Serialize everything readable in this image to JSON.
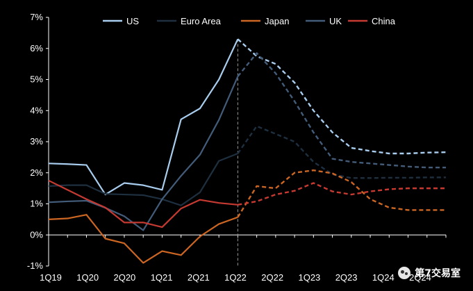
{
  "chart_data": {
    "type": "line",
    "title": "",
    "xlabel": "",
    "ylabel": "",
    "ylim": [
      -1,
      7
    ],
    "y_ticks": [
      "-1%",
      "0%",
      "1%",
      "2%",
      "3%",
      "4%",
      "5%",
      "6%",
      "7%"
    ],
    "x_ticks": [
      "1Q19",
      "1Q20",
      "2Q20",
      "1Q21",
      "2Q21",
      "1Q22",
      "2Q22",
      "1Q23",
      "2Q23",
      "1Q24",
      "2Q24"
    ],
    "forecast_start": 12,
    "legend_position": "top",
    "grid": false,
    "series": [
      {
        "name": "US",
        "color": "#a9cdee",
        "values": [
          2.3,
          2.28,
          2.25,
          1.3,
          1.67,
          1.6,
          1.45,
          3.72,
          4.07,
          5.0,
          6.3,
          5.75,
          5.5,
          4.9,
          4.0,
          3.3,
          2.8,
          2.7,
          2.62,
          2.62,
          2.65,
          2.66
        ]
      },
      {
        "name": "Euro Area",
        "color": "#1e3040",
        "values": [
          1.57,
          1.6,
          1.6,
          1.32,
          1.3,
          1.28,
          1.15,
          0.95,
          1.37,
          2.38,
          2.62,
          3.5,
          3.25,
          3.0,
          2.35,
          1.95,
          1.83,
          1.83,
          1.84,
          1.84,
          1.85,
          1.85
        ]
      },
      {
        "name": "Japan",
        "color": "#cc6622",
        "values": [
          0.5,
          0.53,
          0.65,
          -0.12,
          -0.27,
          -0.9,
          -0.52,
          -0.65,
          -0.05,
          0.35,
          0.57,
          1.57,
          1.5,
          2.0,
          2.08,
          1.98,
          1.7,
          1.15,
          0.88,
          0.8,
          0.8,
          0.8
        ]
      },
      {
        "name": "UK",
        "color": "#435c7a",
        "values": [
          1.05,
          1.08,
          1.1,
          0.87,
          0.6,
          0.15,
          1.15,
          1.9,
          2.58,
          3.7,
          5.1,
          5.85,
          5.2,
          4.3,
          3.3,
          2.45,
          2.35,
          2.3,
          2.25,
          2.2,
          2.17,
          2.17
        ]
      },
      {
        "name": "China",
        "color": "#c63a32",
        "values": [
          1.75,
          1.45,
          1.15,
          0.88,
          0.4,
          0.4,
          0.25,
          0.85,
          1.13,
          1.03,
          0.97,
          1.08,
          1.3,
          1.42,
          1.67,
          1.4,
          1.3,
          1.4,
          1.47,
          1.5,
          1.5,
          1.5
        ]
      }
    ]
  },
  "watermark": {
    "text": "第7交易室",
    "icon": "wechat-icon"
  }
}
